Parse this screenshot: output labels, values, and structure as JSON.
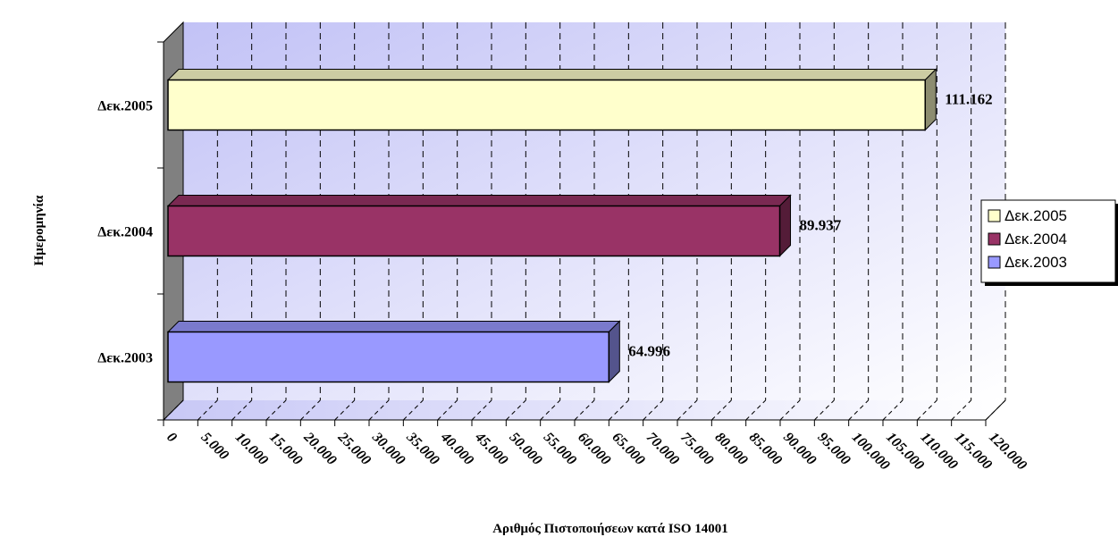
{
  "chart_data": {
    "type": "bar",
    "orientation": "horizontal",
    "three_d": true,
    "categories": [
      "Δεκ.2003",
      "Δεκ.2004",
      "Δεκ.2005"
    ],
    "values": [
      64996,
      89937,
      111162
    ],
    "data_labels": [
      "64.996",
      "89.937",
      "111.162"
    ],
    "colors": [
      "#9999ff",
      "#993366",
      "#ffffcc"
    ],
    "xlabel": "Αριθμός Πιστοποιήσεων κατά ISO 14001",
    "ylabel": "Ημερομηνία",
    "xlim": [
      0,
      120000
    ],
    "x_ticks": [
      "0",
      "5.000",
      "10.000",
      "15.000",
      "20.000",
      "25.000",
      "30.000",
      "35.000",
      "40.000",
      "45.000",
      "50.000",
      "55.000",
      "60.000",
      "65.000",
      "70.000",
      "75.000",
      "80.000",
      "85.000",
      "90.000",
      "95.000",
      "100.000",
      "105.000",
      "110.000",
      "115.000",
      "120.000"
    ],
    "grid": true,
    "legend": {
      "position": "right",
      "entries": [
        {
          "label": "Δεκ.2005",
          "color": "#ffffcc"
        },
        {
          "label": "Δεκ.2004",
          "color": "#993366"
        },
        {
          "label": "Δεκ.2003",
          "color": "#9999ff"
        }
      ]
    }
  }
}
